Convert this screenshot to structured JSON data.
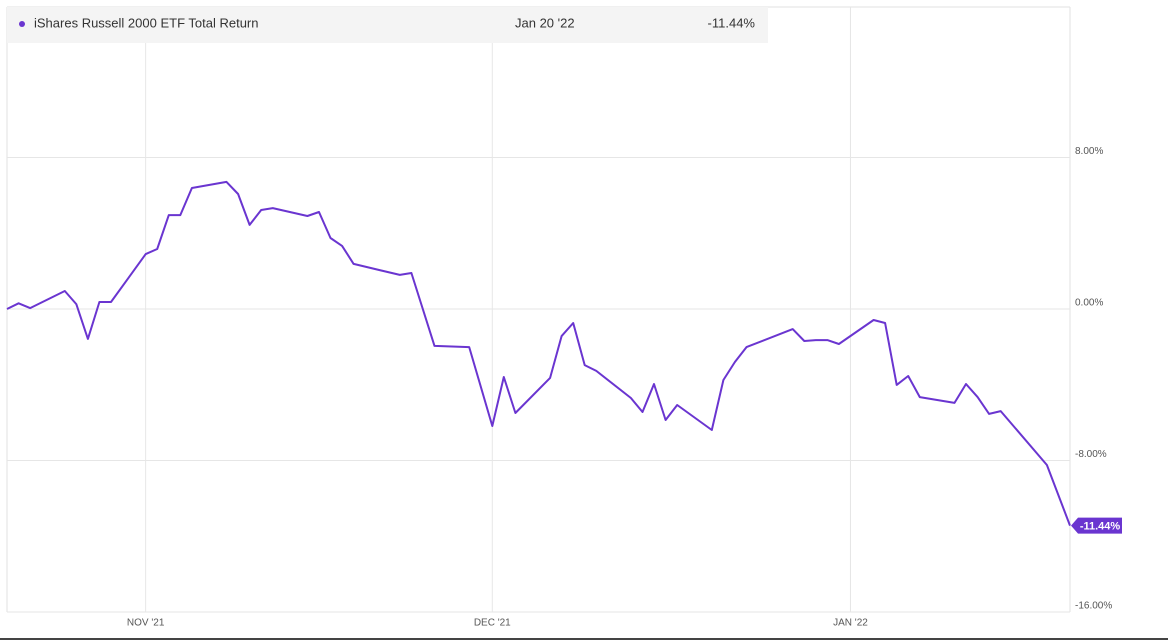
{
  "chart_data": {
    "type": "line",
    "header_date": "Jan 20 '22",
    "x": [
      0,
      1,
      2,
      5,
      6,
      7,
      8,
      9,
      12,
      13,
      14,
      15,
      16,
      19,
      20,
      21,
      22,
      23,
      26,
      27,
      28,
      29,
      30,
      34,
      35,
      37,
      40,
      42,
      43,
      44,
      47,
      48,
      49,
      50,
      51,
      54,
      55,
      56,
      57,
      58,
      61,
      62,
      63,
      64,
      68,
      69,
      70,
      71,
      72,
      75,
      76,
      77,
      78,
      79,
      82,
      83,
      84,
      85,
      86,
      90,
      92
    ],
    "series": [
      {
        "name": "iShares Russell 2000 ETF Total Return",
        "color": "#6a35d0",
        "values": [
          0,
          0.3,
          0.05,
          0.95,
          0.26,
          -1.58,
          0.37,
          0.37,
          2.9,
          3.17,
          4.96,
          4.96,
          6.39,
          6.71,
          6.07,
          4.44,
          5.23,
          5.33,
          4.91,
          5.12,
          3.75,
          3.33,
          2.38,
          1.8,
          1.9,
          -1.95,
          -2.01,
          -6.18,
          -3.59,
          -5.49,
          -3.64,
          -1.43,
          -0.74,
          -2.96,
          -3.27,
          -4.7,
          -5.44,
          -3.96,
          -5.86,
          -5.07,
          -6.39,
          -3.75,
          -2.8,
          -2.01,
          -1.06,
          -1.69,
          -1.64,
          -1.64,
          -1.85,
          -0.58,
          -0.74,
          -4.01,
          -3.54,
          -4.65,
          -4.96,
          -3.96,
          -4.65,
          -5.54,
          -5.39,
          -8.24,
          -11.44
        ],
        "value_labels": [
          null,
          null,
          null,
          null,
          null,
          null,
          null,
          null,
          null,
          null,
          null,
          null,
          null,
          null,
          null,
          null,
          null,
          null,
          null,
          null,
          null,
          null,
          null,
          null,
          null,
          null,
          null,
          null,
          null,
          null,
          null,
          null,
          null,
          null,
          null,
          null,
          null,
          null,
          null,
          null,
          null,
          null,
          null,
          null,
          null,
          null,
          null,
          null,
          null,
          null,
          null,
          null,
          null,
          null,
          null,
          null,
          null,
          null,
          null,
          null,
          "-11.44%"
        ]
      }
    ],
    "xlim": [
      0,
      92
    ],
    "xticks": [
      {
        "value": 12,
        "label": "NOV '21"
      },
      {
        "value": 42,
        "label": "DEC '21"
      },
      {
        "value": 73,
        "label": "JAN '22"
      }
    ],
    "ylim": [
      -16,
      16
    ],
    "yticks": [
      {
        "value": 8,
        "label": "8.00%"
      },
      {
        "value": 0,
        "label": "0.00%"
      },
      {
        "value": -8,
        "label": "-8.00%"
      },
      {
        "value": -16,
        "label": "-16.00%"
      }
    ],
    "grid": true
  }
}
